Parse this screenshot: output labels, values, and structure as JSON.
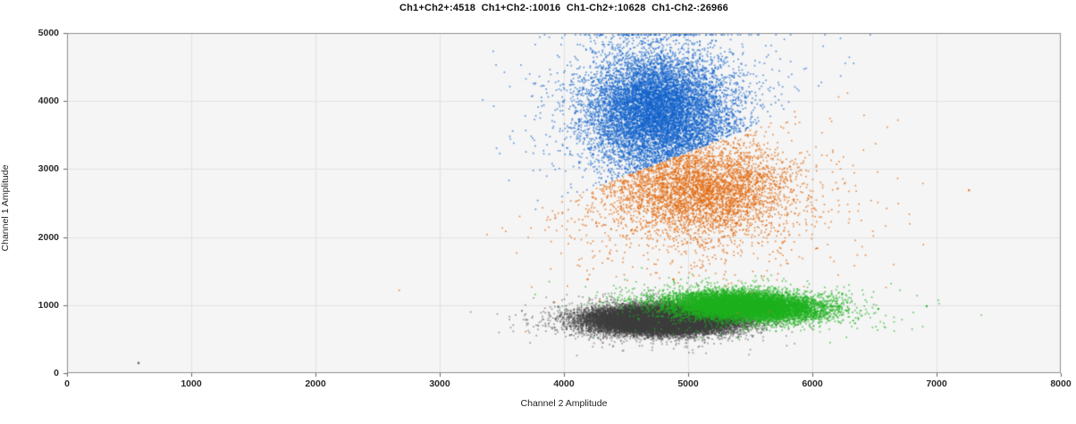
{
  "title": "Ch1+Ch2+:4518  Ch1+Ch2-:10016  Ch1-Ch2+:10628  Ch1-Ch2-:26966",
  "counts": {
    "ch1pos_ch2pos": 4518,
    "ch1pos_ch2neg": 10016,
    "ch1neg_ch2pos": 10628,
    "ch1neg_ch2neg": 26966
  },
  "colors": {
    "blue_cluster": "#1464cd",
    "orange_cluster": "#e2690e",
    "green_cluster": "#1eb21e",
    "gray_cluster": "#3f3f3f",
    "plot_background": "#f5f5f5",
    "grid_line": "#e3e3e3",
    "frame": "#8f8f8f",
    "tick_mark": "#666666"
  },
  "chart_data": {
    "type": "scatter",
    "title": "Ch1+Ch2+:4518  Ch1+Ch2-:10016  Ch1-Ch2+:10628  Ch1-Ch2-:26966",
    "xlabel": "Channel 2 Amplitude",
    "ylabel": "Channel 1 Amplitude",
    "xlim": [
      0,
      8000
    ],
    "ylim": [
      0,
      5000
    ],
    "x_ticks": [
      0,
      1000,
      2000,
      3000,
      4000,
      5000,
      6000,
      7000,
      8000
    ],
    "y_ticks": [
      0,
      1000,
      2000,
      3000,
      4000,
      5000
    ],
    "grid": true,
    "legend": "none",
    "separator": {
      "slope": 0.694,
      "intercept": -206
    },
    "clusters": [
      {
        "name": "double-negative",
        "label": "Ch1-Ch2-",
        "count": 26966,
        "color": "#3f3f3f",
        "alpha": 0.5,
        "center": [
          4790,
          790
        ],
        "sd": [
          280,
          95
        ],
        "halo_frac": 0.08,
        "halo_sd": [
          430,
          150
        ],
        "rho": 0,
        "side": "none"
      },
      {
        "name": "ch2-positive",
        "label": "Ch1-Ch2+",
        "count": 10628,
        "color": "#1eb21e",
        "alpha": 0.65,
        "center": [
          5460,
          1000
        ],
        "sd": [
          300,
          105
        ],
        "halo_frac": 0.08,
        "halo_sd": [
          520,
          160
        ],
        "rho": -0.2,
        "side": "none"
      },
      {
        "name": "ch1-positive",
        "label": "Ch1+Ch2-",
        "count": 10016,
        "color": "#1464cd",
        "alpha": 0.65,
        "center": [
          4730,
          3880
        ],
        "sd": [
          280,
          430
        ],
        "halo_frac": 0.12,
        "halo_sd": [
          480,
          700
        ],
        "rho": 0,
        "side": "above"
      },
      {
        "name": "double-positive",
        "label": "Ch1+Ch2+",
        "count": 4518,
        "color": "#e2690e",
        "alpha": 0.7,
        "center": [
          5120,
          2680
        ],
        "sd": [
          340,
          330
        ],
        "halo_frac": 0.28,
        "halo_sd": [
          560,
          600
        ],
        "rho": 0,
        "side": "below"
      }
    ],
    "outliers": [
      {
        "x": 575,
        "y": 150,
        "color": "#3f3f3f"
      },
      {
        "x": 4020,
        "y": 650,
        "color": "#3f3f3f"
      },
      {
        "x": 4050,
        "y": 690,
        "color": "#3f3f3f"
      },
      {
        "x": 7260,
        "y": 2690,
        "color": "#e2690e"
      },
      {
        "x": 4190,
        "y": 1380,
        "color": "#e2690e"
      },
      {
        "x": 4880,
        "y": 1380,
        "color": "#e2690e"
      },
      {
        "x": 6240,
        "y": 1170,
        "color": "#1eb21e"
      },
      {
        "x": 6160,
        "y": 985,
        "color": "#1eb21e"
      },
      {
        "x": 6530,
        "y": 945,
        "color": "#1eb21e"
      },
      {
        "x": 6920,
        "y": 985,
        "color": "#1eb21e"
      }
    ]
  }
}
